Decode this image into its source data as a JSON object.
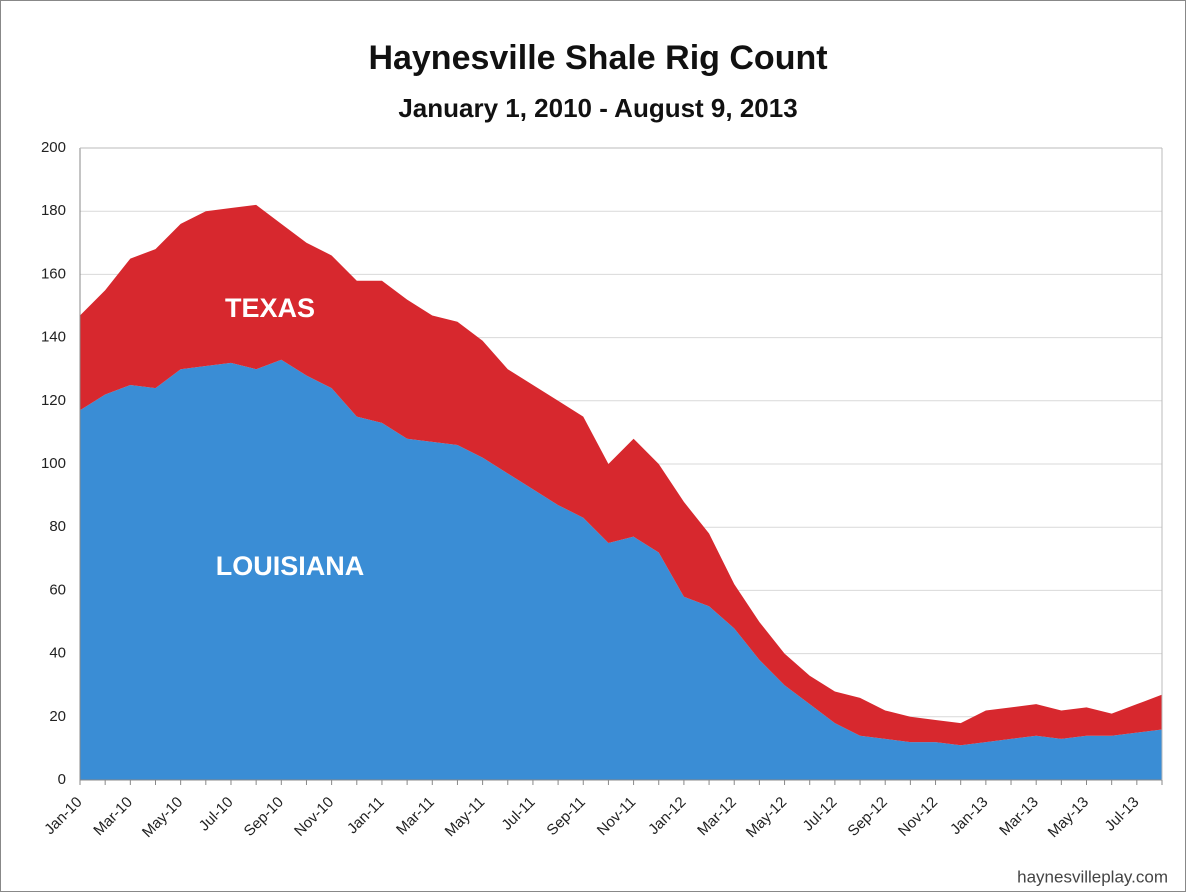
{
  "chart_data": {
    "type": "stacked_area",
    "title": "Haynesville Shale Rig Count",
    "subtitle": "January 1, 2010 - August 9, 2013",
    "source": "haynesvilleplay.com",
    "categories": [
      "Jan-10",
      null,
      "Mar-10",
      null,
      "May-10",
      null,
      "Jul-10",
      null,
      "Sep-10",
      null,
      "Nov-10",
      null,
      "Jan-11",
      null,
      "Mar-11",
      null,
      "May-11",
      null,
      "Jul-11",
      null,
      "Sep-11",
      null,
      "Nov-11",
      null,
      "Jan-12",
      null,
      "Mar-12",
      null,
      "May-12",
      null,
      "Jul-12",
      null,
      "Sep-12",
      null,
      "Nov-12",
      null,
      "Jan-13",
      null,
      "Mar-13",
      null,
      "May-13",
      null,
      "Jul-13",
      null
    ],
    "series": [
      {
        "name": "LOUISIANA",
        "color": "#3a8dd5",
        "values": [
          117,
          122,
          125,
          124,
          130,
          131,
          132,
          130,
          133,
          128,
          124,
          115,
          113,
          108,
          107,
          106,
          102,
          97,
          92,
          87,
          83,
          75,
          77,
          72,
          58,
          55,
          48,
          38,
          30,
          24,
          18,
          14,
          13,
          12,
          12,
          11,
          12,
          13,
          14,
          13,
          14,
          14,
          15,
          16
        ]
      },
      {
        "name": "TEXAS",
        "color": "#d7282e",
        "values": [
          30,
          33,
          40,
          44,
          46,
          49,
          49,
          52,
          43,
          42,
          42,
          43,
          45,
          44,
          40,
          39,
          37,
          33,
          33,
          33,
          32,
          25,
          31,
          28,
          30,
          23,
          14,
          12,
          10,
          9,
          10,
          12,
          9,
          8,
          7,
          7,
          10,
          10,
          10,
          9,
          9,
          7,
          9,
          11
        ]
      }
    ],
    "ylim": [
      0,
      200
    ],
    "yticks": [
      0,
      20,
      40,
      60,
      80,
      100,
      120,
      140,
      160,
      180,
      200
    ],
    "grid": true
  }
}
